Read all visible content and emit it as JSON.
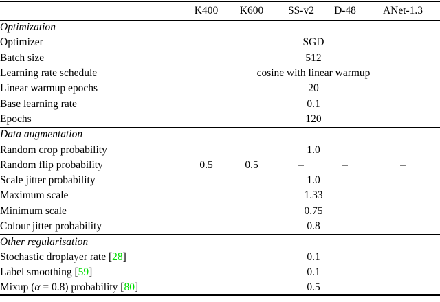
{
  "page": {
    "background": "#ffffff",
    "text_color": "#000000",
    "cite_color": "#00DC00"
  },
  "table": {
    "header": {
      "label_column": "",
      "columns": [
        "K400",
        "K600",
        "SS-v2",
        "D-48",
        "ANet-1.3"
      ]
    },
    "sections": [
      {
        "title": "Optimization",
        "rows": [
          {
            "label_parts": [
              {
                "text": "Optimizer"
              }
            ],
            "span_value": "SGD"
          },
          {
            "label_parts": [
              {
                "text": "Batch size"
              }
            ],
            "span_value": "512"
          },
          {
            "label_parts": [
              {
                "text": "Learning rate schedule"
              }
            ],
            "span_value": "cosine with linear warmup"
          },
          {
            "label_parts": [
              {
                "text": "Linear warmup epochs"
              }
            ],
            "span_value": "20"
          },
          {
            "label_parts": [
              {
                "text": "Base learning rate"
              }
            ],
            "span_value": "0.1"
          },
          {
            "label_parts": [
              {
                "text": "Epochs"
              }
            ],
            "span_value": "120"
          }
        ]
      },
      {
        "title": "Data augmentation",
        "rows": [
          {
            "label_parts": [
              {
                "text": "Random crop probability"
              }
            ],
            "span_value": "1.0"
          },
          {
            "label_parts": [
              {
                "text": "Random flip probability"
              }
            ],
            "values": [
              "0.5",
              "0.5",
              "–",
              "–",
              "–"
            ]
          },
          {
            "label_parts": [
              {
                "text": "Scale jitter probability"
              }
            ],
            "span_value": "1.0"
          },
          {
            "label_parts": [
              {
                "text": "Maximum scale"
              }
            ],
            "span_value": "1.33"
          },
          {
            "label_parts": [
              {
                "text": "Minimum scale"
              }
            ],
            "span_value": "0.75"
          },
          {
            "label_parts": [
              {
                "text": "Colour jitter probability"
              }
            ],
            "span_value": "0.8"
          }
        ]
      },
      {
        "title": "Other regularisation",
        "rows": [
          {
            "label_parts": [
              {
                "text": "Stochastic droplayer rate ["
              },
              {
                "text": "28",
                "style": "cite"
              },
              {
                "text": "]"
              }
            ],
            "span_value": "0.1"
          },
          {
            "label_parts": [
              {
                "text": "Label smoothing ["
              },
              {
                "text": "59",
                "style": "cite"
              },
              {
                "text": "]"
              }
            ],
            "span_value": "0.1"
          },
          {
            "label_parts": [
              {
                "text": "Mixup ("
              },
              {
                "text": "α",
                "style": "math"
              },
              {
                "text": " = 0.8) probability ["
              },
              {
                "text": "80",
                "style": "cite"
              },
              {
                "text": "]"
              }
            ],
            "span_value": "0.5"
          }
        ]
      }
    ]
  }
}
